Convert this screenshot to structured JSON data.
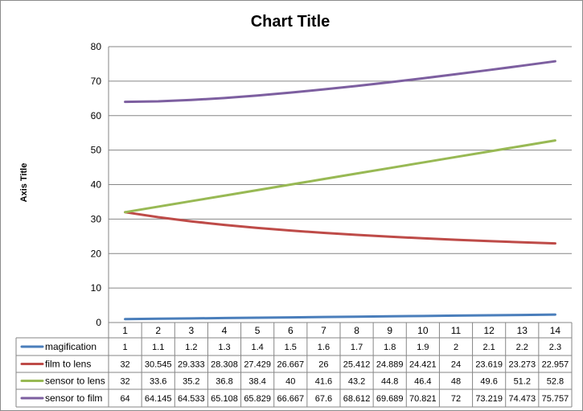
{
  "chart_data": {
    "type": "line",
    "title": "Chart Title",
    "xlabel": "",
    "ylabel": "Axis Title",
    "ylim": [
      0,
      80
    ],
    "yticks": [
      0,
      10,
      20,
      30,
      40,
      50,
      60,
      70,
      80
    ],
    "grid": "horizontal",
    "legend": "data-table",
    "categories": [
      "1",
      "2",
      "3",
      "4",
      "5",
      "6",
      "7",
      "8",
      "9",
      "10",
      "11",
      "12",
      "13",
      "14"
    ],
    "series": [
      {
        "name": "magification",
        "color": "#4a7ebb",
        "values": [
          1,
          1.1,
          1.2,
          1.3,
          1.4,
          1.5,
          1.6,
          1.7,
          1.8,
          1.9,
          2,
          2.1,
          2.2,
          2.3
        ],
        "labels": [
          "1",
          "1.1",
          "1.2",
          "1.3",
          "1.4",
          "1.5",
          "1.6",
          "1.7",
          "1.8",
          "1.9",
          "2",
          "2.1",
          "2.2",
          "2.3"
        ]
      },
      {
        "name": "film to lens",
        "color": "#be4b48",
        "values": [
          32,
          30.545,
          29.333,
          28.308,
          27.429,
          26.667,
          26,
          25.412,
          24.889,
          24.421,
          24,
          23.619,
          23.273,
          22.957
        ],
        "labels": [
          "32",
          "30.545",
          "29.333",
          "28.308",
          "27.429",
          "26.667",
          "26",
          "25.412",
          "24.889",
          "24.421",
          "24",
          "23.619",
          "23.273",
          "22.957"
        ]
      },
      {
        "name": "sensor to lens",
        "color": "#98b954",
        "values": [
          32,
          33.6,
          35.2,
          36.8,
          38.4,
          40,
          41.6,
          43.2,
          44.8,
          46.4,
          48,
          49.6,
          51.2,
          52.8
        ],
        "labels": [
          "32",
          "33.6",
          "35.2",
          "36.8",
          "38.4",
          "40",
          "41.6",
          "43.2",
          "44.8",
          "46.4",
          "48",
          "49.6",
          "51.2",
          "52.8"
        ]
      },
      {
        "name": "sensor to film",
        "color": "#7d5fa0",
        "values": [
          64,
          64.145,
          64.533,
          65.108,
          65.829,
          66.667,
          67.6,
          68.612,
          69.689,
          70.821,
          72,
          73.219,
          74.473,
          75.757
        ],
        "labels": [
          "64",
          "64.145",
          "64.533",
          "65.108",
          "65.829",
          "66.667",
          "67.6",
          "68.612",
          "69.689",
          "70.821",
          "72",
          "73.219",
          "74.473",
          "75.757"
        ]
      }
    ]
  }
}
